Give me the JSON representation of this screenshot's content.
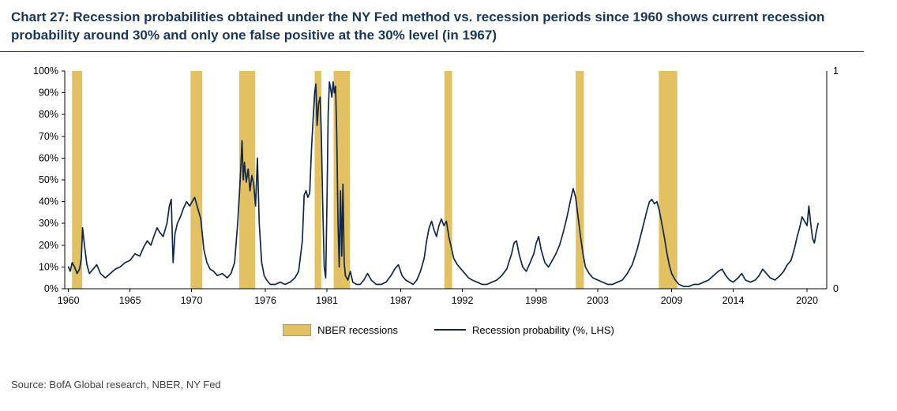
{
  "header": {
    "title": "Chart 27: Recession probabilities obtained under the NY Fed method vs. recession periods since 1960 shows current recession probability around 30% and only one false positive at the 30% level (in 1967)"
  },
  "source": "Source: BofA Global research, NBER, NY Fed",
  "legend": {
    "recessions_label": "NBER recessions",
    "probability_label": "Recession probability (%, LHS)"
  },
  "colors": {
    "band": "#E1C161",
    "line": "#10264B",
    "title": "#17365D",
    "axis": "#000000"
  },
  "chart_data": {
    "type": "line",
    "title": "Recession probabilities obtained under the NY Fed method vs. recession periods since 1960",
    "xlabel": "",
    "ylabel": "",
    "xlim": [
      1959.7,
      2021.6
    ],
    "ylim": [
      0,
      100
    ],
    "grid": false,
    "legend_position": "bottom",
    "x_ticks": [
      1960,
      1965,
      1970,
      1976,
      1981,
      1987,
      1992,
      1998,
      2003,
      2009,
      2014,
      2020
    ],
    "y_ticks_left": [
      "0%",
      "10%",
      "20%",
      "30%",
      "40%",
      "50%",
      "60%",
      "70%",
      "80%",
      "90%",
      "100%"
    ],
    "y_right_labels": {
      "top": "1",
      "bottom": "0"
    },
    "bands_label": "NBER recessions",
    "bands": [
      [
        1960.29,
        1961.12
      ],
      [
        1969.92,
        1970.88
      ],
      [
        1973.87,
        1975.17
      ],
      [
        1980.0,
        1980.54
      ],
      [
        1981.54,
        1982.87
      ],
      [
        1990.54,
        1991.17
      ],
      [
        2001.21,
        2001.87
      ],
      [
        2007.96,
        2009.46
      ]
    ],
    "series": [
      {
        "name": "Recession probability (%, LHS)",
        "points": [
          [
            1960.0,
            10
          ],
          [
            1960.15,
            8
          ],
          [
            1960.3,
            12
          ],
          [
            1960.5,
            10
          ],
          [
            1960.7,
            7
          ],
          [
            1960.9,
            9
          ],
          [
            1961.05,
            14
          ],
          [
            1961.15,
            28
          ],
          [
            1961.3,
            20
          ],
          [
            1961.5,
            11
          ],
          [
            1961.7,
            7
          ],
          [
            1962.0,
            9
          ],
          [
            1962.3,
            11
          ],
          [
            1962.6,
            7
          ],
          [
            1963.0,
            5
          ],
          [
            1963.4,
            7
          ],
          [
            1963.8,
            9
          ],
          [
            1964.2,
            10
          ],
          [
            1964.6,
            12
          ],
          [
            1965.0,
            13
          ],
          [
            1965.4,
            16
          ],
          [
            1965.8,
            15
          ],
          [
            1966.1,
            19
          ],
          [
            1966.4,
            22
          ],
          [
            1966.7,
            20
          ],
          [
            1967.0,
            25
          ],
          [
            1967.2,
            28
          ],
          [
            1967.4,
            26
          ],
          [
            1967.7,
            24
          ],
          [
            1968.0,
            30
          ],
          [
            1968.2,
            38
          ],
          [
            1968.35,
            41
          ],
          [
            1968.5,
            12
          ],
          [
            1968.65,
            25
          ],
          [
            1968.85,
            30
          ],
          [
            1969.1,
            33
          ],
          [
            1969.35,
            37
          ],
          [
            1969.6,
            40
          ],
          [
            1969.85,
            38
          ],
          [
            1970.05,
            40
          ],
          [
            1970.25,
            42
          ],
          [
            1970.5,
            37
          ],
          [
            1970.75,
            32
          ],
          [
            1971.0,
            18
          ],
          [
            1971.25,
            12
          ],
          [
            1971.5,
            9
          ],
          [
            1971.8,
            8
          ],
          [
            1972.1,
            6
          ],
          [
            1972.5,
            7
          ],
          [
            1972.9,
            5
          ],
          [
            1973.2,
            7
          ],
          [
            1973.5,
            12
          ],
          [
            1973.75,
            30
          ],
          [
            1973.9,
            45
          ],
          [
            1974.0,
            55
          ],
          [
            1974.1,
            68
          ],
          [
            1974.2,
            50
          ],
          [
            1974.3,
            58
          ],
          [
            1974.45,
            49
          ],
          [
            1974.6,
            55
          ],
          [
            1974.75,
            45
          ],
          [
            1974.9,
            52
          ],
          [
            1975.05,
            48
          ],
          [
            1975.2,
            38
          ],
          [
            1975.35,
            60
          ],
          [
            1975.5,
            30
          ],
          [
            1975.7,
            12
          ],
          [
            1975.9,
            6
          ],
          [
            1976.1,
            4
          ],
          [
            1976.4,
            2
          ],
          [
            1976.8,
            2
          ],
          [
            1977.2,
            3
          ],
          [
            1977.6,
            2
          ],
          [
            1978.0,
            3
          ],
          [
            1978.4,
            5
          ],
          [
            1978.7,
            8
          ],
          [
            1979.0,
            22
          ],
          [
            1979.15,
            43
          ],
          [
            1979.3,
            45
          ],
          [
            1979.45,
            42
          ],
          [
            1979.6,
            44
          ],
          [
            1979.75,
            65
          ],
          [
            1979.9,
            80
          ],
          [
            1980.0,
            90
          ],
          [
            1980.1,
            94
          ],
          [
            1980.2,
            75
          ],
          [
            1980.32,
            85
          ],
          [
            1980.45,
            88
          ],
          [
            1980.55,
            70
          ],
          [
            1980.65,
            40
          ],
          [
            1980.78,
            10
          ],
          [
            1980.9,
            5
          ],
          [
            1981.0,
            40
          ],
          [
            1981.1,
            80
          ],
          [
            1981.2,
            95
          ],
          [
            1981.3,
            92
          ],
          [
            1981.4,
            88
          ],
          [
            1981.5,
            95
          ],
          [
            1981.6,
            90
          ],
          [
            1981.7,
            93
          ],
          [
            1981.8,
            70
          ],
          [
            1981.9,
            30
          ],
          [
            1982.0,
            10
          ],
          [
            1982.1,
            45
          ],
          [
            1982.2,
            15
          ],
          [
            1982.3,
            48
          ],
          [
            1982.4,
            12
          ],
          [
            1982.5,
            6
          ],
          [
            1982.7,
            4
          ],
          [
            1982.9,
            8
          ],
          [
            1983.1,
            3
          ],
          [
            1983.4,
            2
          ],
          [
            1983.7,
            2
          ],
          [
            1984.0,
            4
          ],
          [
            1984.3,
            7
          ],
          [
            1984.6,
            4
          ],
          [
            1985.0,
            2
          ],
          [
            1985.4,
            2
          ],
          [
            1985.8,
            3
          ],
          [
            1986.2,
            6
          ],
          [
            1986.5,
            9
          ],
          [
            1986.8,
            11
          ],
          [
            1987.1,
            6
          ],
          [
            1987.4,
            4
          ],
          [
            1987.7,
            3
          ],
          [
            1988.0,
            2
          ],
          [
            1988.3,
            4
          ],
          [
            1988.6,
            8
          ],
          [
            1988.9,
            14
          ],
          [
            1989.1,
            22
          ],
          [
            1989.3,
            28
          ],
          [
            1989.5,
            31
          ],
          [
            1989.7,
            27
          ],
          [
            1989.9,
            24
          ],
          [
            1990.1,
            29
          ],
          [
            1990.3,
            32
          ],
          [
            1990.5,
            29
          ],
          [
            1990.7,
            31
          ],
          [
            1990.9,
            24
          ],
          [
            1991.1,
            19
          ],
          [
            1991.3,
            14
          ],
          [
            1991.6,
            11
          ],
          [
            1991.9,
            9
          ],
          [
            1992.2,
            7
          ],
          [
            1992.5,
            5
          ],
          [
            1992.8,
            4
          ],
          [
            1993.2,
            3
          ],
          [
            1993.6,
            2
          ],
          [
            1994.0,
            2
          ],
          [
            1994.4,
            3
          ],
          [
            1994.8,
            4
          ],
          [
            1995.2,
            6
          ],
          [
            1995.6,
            9
          ],
          [
            1996.0,
            16
          ],
          [
            1996.2,
            21
          ],
          [
            1996.4,
            22
          ],
          [
            1996.6,
            16
          ],
          [
            1996.9,
            10
          ],
          [
            1997.2,
            8
          ],
          [
            1997.5,
            12
          ],
          [
            1997.8,
            16
          ],
          [
            1998.0,
            21
          ],
          [
            1998.2,
            24
          ],
          [
            1998.4,
            18
          ],
          [
            1998.7,
            12
          ],
          [
            1999.0,
            10
          ],
          [
            1999.3,
            13
          ],
          [
            1999.6,
            16
          ],
          [
            1999.9,
            20
          ],
          [
            2000.2,
            26
          ],
          [
            2000.5,
            33
          ],
          [
            2000.8,
            41
          ],
          [
            2001.0,
            46
          ],
          [
            2001.2,
            42
          ],
          [
            2001.4,
            33
          ],
          [
            2001.6,
            24
          ],
          [
            2001.8,
            16
          ],
          [
            2002.0,
            10
          ],
          [
            2002.3,
            7
          ],
          [
            2002.6,
            5
          ],
          [
            2003.0,
            4
          ],
          [
            2003.4,
            3
          ],
          [
            2003.8,
            2
          ],
          [
            2004.2,
            2
          ],
          [
            2004.6,
            3
          ],
          [
            2005.0,
            4
          ],
          [
            2005.4,
            7
          ],
          [
            2005.8,
            11
          ],
          [
            2006.2,
            18
          ],
          [
            2006.6,
            27
          ],
          [
            2007.0,
            36
          ],
          [
            2007.2,
            40
          ],
          [
            2007.4,
            41
          ],
          [
            2007.6,
            39
          ],
          [
            2007.8,
            40
          ],
          [
            2008.0,
            36
          ],
          [
            2008.2,
            30
          ],
          [
            2008.4,
            24
          ],
          [
            2008.6,
            17
          ],
          [
            2008.8,
            11
          ],
          [
            2009.0,
            7
          ],
          [
            2009.3,
            4
          ],
          [
            2009.6,
            2
          ],
          [
            2010.0,
            1
          ],
          [
            2010.4,
            1
          ],
          [
            2010.8,
            2
          ],
          [
            2011.2,
            2
          ],
          [
            2011.6,
            3
          ],
          [
            2012.0,
            4
          ],
          [
            2012.4,
            6
          ],
          [
            2012.8,
            8
          ],
          [
            2013.1,
            9
          ],
          [
            2013.4,
            6
          ],
          [
            2013.7,
            4
          ],
          [
            2014.0,
            3
          ],
          [
            2014.4,
            5
          ],
          [
            2014.7,
            7
          ],
          [
            2015.0,
            4
          ],
          [
            2015.4,
            3
          ],
          [
            2015.8,
            4
          ],
          [
            2016.1,
            6
          ],
          [
            2016.4,
            9
          ],
          [
            2016.7,
            7
          ],
          [
            2017.0,
            5
          ],
          [
            2017.4,
            4
          ],
          [
            2017.8,
            6
          ],
          [
            2018.1,
            8
          ],
          [
            2018.4,
            11
          ],
          [
            2018.7,
            13
          ],
          [
            2019.0,
            19
          ],
          [
            2019.2,
            24
          ],
          [
            2019.4,
            28
          ],
          [
            2019.6,
            33
          ],
          [
            2019.8,
            31
          ],
          [
            2020.0,
            29
          ],
          [
            2020.15,
            38
          ],
          [
            2020.3,
            30
          ],
          [
            2020.45,
            23
          ],
          [
            2020.6,
            21
          ],
          [
            2020.75,
            26
          ],
          [
            2020.9,
            30
          ]
        ]
      }
    ]
  }
}
